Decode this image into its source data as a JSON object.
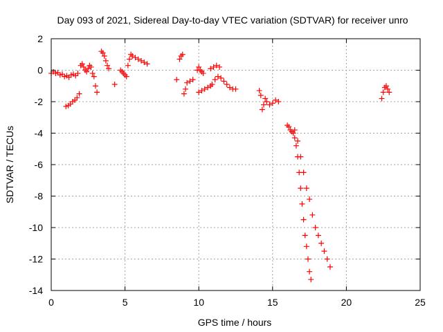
{
  "chart_data": {
    "type": "scatter",
    "title": "Day 093 of 2021, Sidereal Day-to-day VTEC variation (SDTVAR) for receiver unro",
    "xlabel": "GPS time / hours",
    "ylabel": "SDTVAR / TECUs",
    "xlim": [
      0,
      25
    ],
    "ylim": [
      -14,
      2
    ],
    "xticks": [
      0,
      5,
      10,
      15,
      20,
      25
    ],
    "yticks": [
      2,
      0,
      -2,
      -4,
      -6,
      -8,
      -10,
      -12,
      -14
    ],
    "grid": true,
    "marker": "+",
    "color": "#ff0000",
    "series": [
      {
        "name": "SDTVAR",
        "segments": [
          {
            "x": [
              0.0,
              0.15,
              0.3,
              0.45,
              0.6,
              0.75,
              0.9,
              1.05,
              1.2,
              1.35,
              1.5,
              1.65,
              1.8
            ],
            "y": [
              -0.2,
              -0.1,
              -0.2,
              -0.15,
              -0.3,
              -0.25,
              -0.4,
              -0.35,
              -0.45,
              -0.3,
              -0.25,
              -0.35,
              -0.2
            ]
          },
          {
            "x": [
              1.0,
              1.15,
              1.3,
              1.45,
              1.6,
              1.75,
              1.9
            ],
            "y": [
              -2.3,
              -2.25,
              -2.15,
              -2.0,
              -1.9,
              -1.75,
              -1.5
            ]
          },
          {
            "x": [
              2.0,
              2.1,
              2.2,
              2.3,
              2.4,
              2.5,
              2.6,
              2.7
            ],
            "y": [
              0.3,
              0.4,
              0.2,
              0.0,
              -0.1,
              0.1,
              0.3,
              0.2
            ]
          },
          {
            "x": [
              2.8,
              2.9,
              3.0,
              3.1
            ],
            "y": [
              -0.2,
              -0.4,
              -1.0,
              -1.4
            ]
          },
          {
            "x": [
              3.4,
              3.5,
              3.6,
              3.7,
              3.8,
              3.9
            ],
            "y": [
              1.2,
              1.1,
              0.9,
              0.6,
              0.3,
              0.1
            ]
          },
          {
            "x": [
              4.3
            ],
            "y": [
              -0.9
            ]
          },
          {
            "x": [
              4.7,
              4.8,
              4.9,
              5.0,
              5.1
            ],
            "y": [
              0.0,
              -0.1,
              -0.2,
              -0.3,
              -0.4
            ]
          },
          {
            "x": [
              5.2,
              5.3,
              5.4,
              5.5,
              5.7,
              5.9,
              6.1,
              6.3,
              6.5
            ],
            "y": [
              0.3,
              0.7,
              1.0,
              0.9,
              0.8,
              0.7,
              0.6,
              0.5,
              0.4
            ]
          },
          {
            "x": [
              8.5
            ],
            "y": [
              -0.6
            ]
          },
          {
            "x": [
              8.7,
              8.8,
              8.9
            ],
            "y": [
              0.7,
              0.9,
              1.0
            ]
          },
          {
            "x": [
              9.0,
              9.1,
              9.2,
              9.4,
              9.6
            ],
            "y": [
              -1.5,
              -1.2,
              -0.8,
              -0.7,
              -0.6
            ]
          },
          {
            "x": [
              9.9,
              10.0,
              10.1,
              10.2,
              10.3
            ],
            "y": [
              0.0,
              0.2,
              0.0,
              -0.1,
              -0.2
            ]
          },
          {
            "x": [
              10.0,
              10.2,
              10.4,
              10.6,
              10.8
            ],
            "y": [
              -1.4,
              -1.3,
              -1.2,
              -1.1,
              -1.0
            ]
          },
          {
            "x": [
              10.8,
              11.0,
              11.2,
              11.4
            ],
            "y": [
              0.1,
              0.2,
              0.3,
              0.2
            ]
          },
          {
            "x": [
              10.9,
              11.1,
              11.3,
              11.5,
              11.7,
              11.9,
              12.1,
              12.3,
              12.5
            ],
            "y": [
              -0.9,
              -0.6,
              -0.4,
              -0.5,
              -0.7,
              -0.9,
              -1.1,
              -1.2,
              -1.2
            ]
          },
          {
            "x": [
              14.1,
              14.2,
              14.3,
              14.4,
              14.5,
              14.6,
              14.8,
              15.0,
              15.2,
              15.4
            ],
            "y": [
              -1.3,
              -1.6,
              -2.5,
              -2.2,
              -1.8,
              -2.0,
              -2.2,
              -2.1,
              -1.9,
              -2.0
            ]
          },
          {
            "x": [
              16.0,
              16.1,
              16.2,
              16.3,
              16.4,
              16.5,
              16.6,
              16.7,
              16.8,
              16.9,
              17.0,
              17.1,
              17.2,
              17.3,
              17.4,
              17.5,
              17.6
            ],
            "y": [
              -3.5,
              -3.6,
              -3.8,
              -3.9,
              -4.0,
              -4.3,
              -4.8,
              -5.5,
              -6.5,
              -7.5,
              -8.5,
              -9.5,
              -10.5,
              -11.2,
              -12.0,
              -12.8,
              -13.3
            ]
          },
          {
            "x": [
              16.5,
              16.7,
              16.9,
              17.1,
              17.3,
              17.5,
              17.7,
              17.9,
              18.1,
              18.3,
              18.5,
              18.7,
              18.9
            ],
            "y": [
              -3.8,
              -4.5,
              -5.5,
              -6.5,
              -7.5,
              -8.2,
              -9.2,
              -10.0,
              -10.5,
              -11.0,
              -11.5,
              -12.0,
              -12.5
            ]
          },
          {
            "x": [
              22.4,
              22.5,
              22.6,
              22.7,
              22.8,
              22.9
            ],
            "y": [
              -1.8,
              -1.4,
              -1.1,
              -1.0,
              -1.2,
              -1.4
            ]
          }
        ]
      }
    ]
  }
}
